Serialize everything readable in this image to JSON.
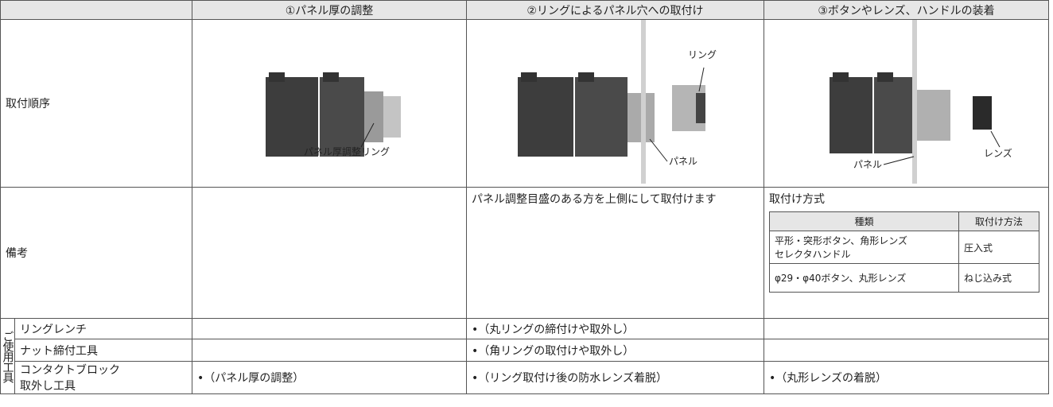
{
  "header": {
    "columns": [
      "①パネル厚の調整",
      "②リングによるパネル穴への取付け",
      "③ボタンやレンズ、ハンドルの装着"
    ]
  },
  "mounting": {
    "label": "取付順序",
    "images": [
      {
        "labels": [
          "パネル厚調整リング"
        ]
      },
      {
        "labels": [
          "リング",
          "パネル"
        ]
      },
      {
        "labels": [
          "パネル",
          "レンズ"
        ]
      }
    ]
  },
  "notes": {
    "label": "備考",
    "cells": [
      null,
      "パネル調整目盛のある方を上側にして取付けます",
      null
    ],
    "method": {
      "title": "取付け方式",
      "header": [
        "種類",
        "取付け方法"
      ],
      "rows": [
        [
          [
            "平形・突形ボタン、角形レンズ",
            "セレクタハンドル"
          ],
          "圧入式"
        ],
        [
          [
            "φ29・φ40ボタン、丸形レンズ"
          ],
          "ねじ込み式"
        ]
      ]
    }
  },
  "tools": {
    "label": "ご使用工具",
    "rows": [
      {
        "name": [
          "リングレンチ"
        ],
        "cells": [
          null,
          "•（丸リングの締付けや取外し）",
          null
        ]
      },
      {
        "name": [
          "ナット締付工具"
        ],
        "cells": [
          null,
          "•（角リングの取付けや取外し）",
          null
        ]
      },
      {
        "name": [
          "コンタクトブロック",
          "取外し工具"
        ],
        "cells": [
          "•（パネル厚の調整）",
          "•（リング取付け後の防水レンズ着脱）",
          "•（丸形レンズの着脱）"
        ]
      }
    ]
  }
}
